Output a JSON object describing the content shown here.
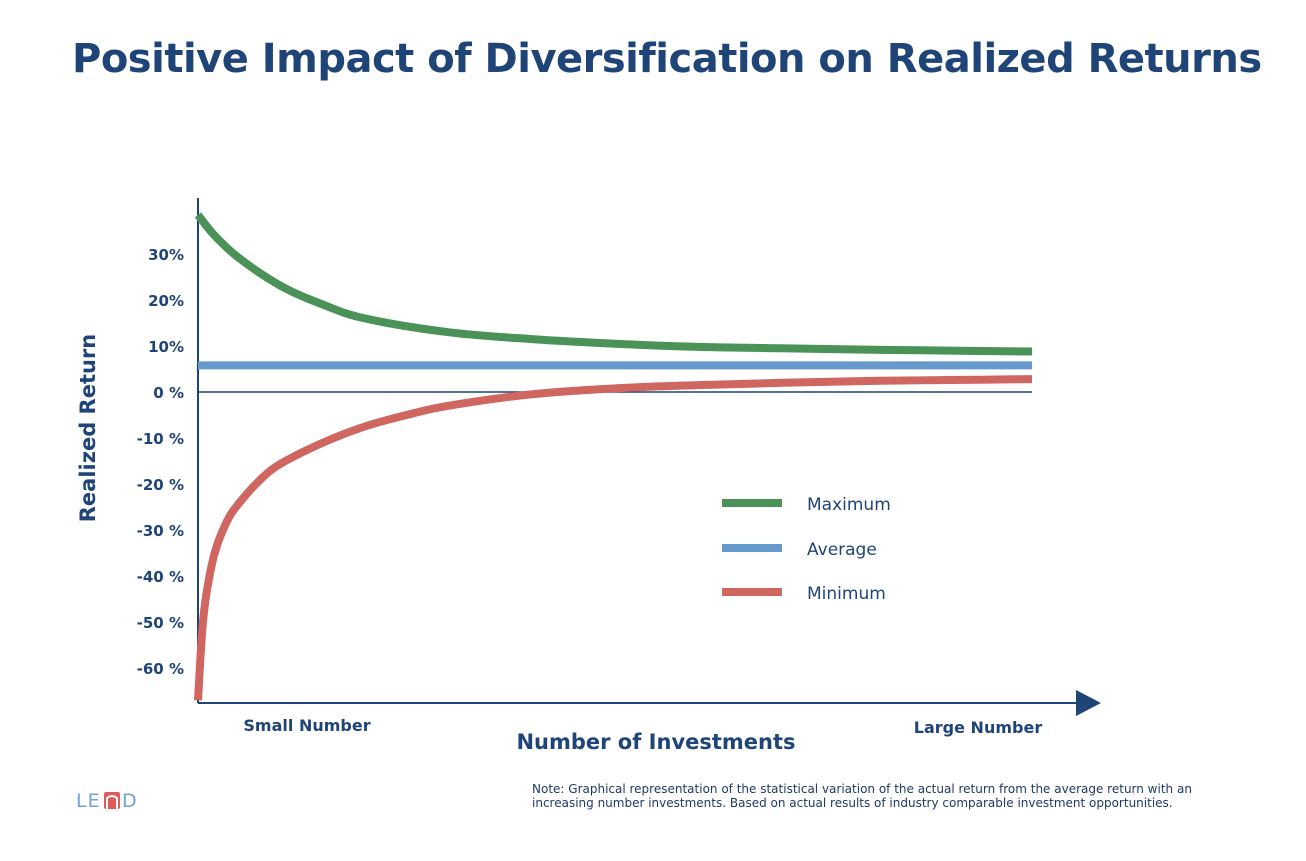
{
  "title": "Positive Impact of Diversification on Realized Returns",
  "note": "Note: Graphical representation of the statistical variation of the actual return from the average return with an increasing number investments. Based on actual results of industry comparable investment opportunities.",
  "logo": {
    "text": "LEND",
    "colors": {
      "text": "#6fa3d6",
      "highlight": "#e05a5a"
    }
  },
  "chart_data": {
    "type": "line",
    "title": "Positive Impact of Diversification on Realized Returns",
    "xlabel": "Number of Investments",
    "ylabel": "Realized Return",
    "x_tick_labels": [
      "Small Number",
      "Large Number"
    ],
    "y_ticks": [
      30,
      20,
      10,
      0,
      -10,
      -20,
      -30,
      -40,
      -50,
      -60
    ],
    "y_tick_labels": [
      "30%",
      "20%",
      "10%",
      "0 %",
      "-10 %",
      "-20 %",
      "-30 %",
      "-40 %",
      "-50 %",
      "-60 %"
    ],
    "ylim": [
      -67,
      39
    ],
    "xlim": [
      0,
      1
    ],
    "grid": false,
    "legend_position": "center-right",
    "series": [
      {
        "name": "Maximum",
        "color": "#4a9257",
        "x": [
          0,
          0.02,
          0.05,
          0.1,
          0.15,
          0.2,
          0.3,
          0.4,
          0.5,
          0.6,
          0.7,
          0.8,
          0.9,
          1.0
        ],
        "y": [
          38.5,
          34,
          29,
          23,
          19,
          16,
          13,
          11.5,
          10.5,
          9.8,
          9.5,
          9.2,
          9,
          8.8
        ]
      },
      {
        "name": "Average",
        "color": "#6699cc",
        "x": [
          0,
          1.0
        ],
        "y": [
          5.8,
          5.8
        ]
      },
      {
        "name": "Minimum",
        "color": "#cf6660",
        "x": [
          0,
          0.005,
          0.01,
          0.02,
          0.035,
          0.05,
          0.075,
          0.1,
          0.15,
          0.2,
          0.25,
          0.3,
          0.4,
          0.5,
          0.6,
          0.7,
          0.8,
          0.9,
          1.0
        ],
        "y": [
          -67,
          -52,
          -44,
          -35,
          -28,
          -24,
          -19,
          -15.5,
          -11,
          -7.5,
          -5,
          -3,
          -0.5,
          0.8,
          1.5,
          2,
          2.4,
          2.6,
          2.8
        ]
      }
    ]
  }
}
